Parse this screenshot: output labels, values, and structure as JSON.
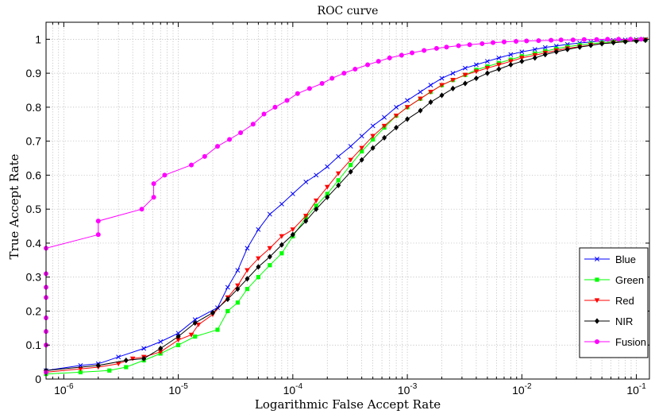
{
  "chart_data": {
    "type": "line",
    "title": "ROC curve",
    "xlabel": "Logarithmic False Accept Rate",
    "ylabel": "True Accept Rate",
    "xscale": "log",
    "xlim": [
      7e-07,
      0.13
    ],
    "ylim": [
      0,
      1.05
    ],
    "grid": true,
    "legend_position": "bottom-right",
    "x_ticks": [
      {
        "value": 1e-06,
        "base": "10",
        "exp": "-6"
      },
      {
        "value": 1e-05,
        "base": "10",
        "exp": "-5"
      },
      {
        "value": 0.0001,
        "base": "10",
        "exp": "-4"
      },
      {
        "value": 0.001,
        "base": "10",
        "exp": "-3"
      },
      {
        "value": 0.01,
        "base": "10",
        "exp": "-2"
      },
      {
        "value": 0.1,
        "base": "10",
        "exp": "-1"
      }
    ],
    "y_ticks": [
      {
        "value": 0,
        "label": "0"
      },
      {
        "value": 0.1,
        "label": "0.1"
      },
      {
        "value": 0.2,
        "label": "0.2"
      },
      {
        "value": 0.3,
        "label": "0.3"
      },
      {
        "value": 0.4,
        "label": "0.4"
      },
      {
        "value": 0.5,
        "label": "0.5"
      },
      {
        "value": 0.6,
        "label": "0.6"
      },
      {
        "value": 0.7,
        "label": "0.7"
      },
      {
        "value": 0.8,
        "label": "0.8"
      },
      {
        "value": 0.9,
        "label": "0.9"
      },
      {
        "value": 1,
        "label": "1"
      }
    ],
    "series": [
      {
        "name": "Blue",
        "color": "#0000ff",
        "marker": "x",
        "x": [
          7e-07,
          1.4e-06,
          2e-06,
          3e-06,
          5e-06,
          7e-06,
          1e-05,
          1.4e-05,
          2.2e-05,
          2.7e-05,
          3.3e-05,
          4e-05,
          5e-05,
          6.3e-05,
          8e-05,
          0.0001,
          0.00013,
          0.00016,
          0.0002,
          0.00025,
          0.00032,
          0.0004,
          0.0005,
          0.00063,
          0.0008,
          0.001,
          0.0013,
          0.0016,
          0.002,
          0.0025,
          0.0032,
          0.004,
          0.005,
          0.0063,
          0.008,
          0.01,
          0.013,
          0.016,
          0.02,
          0.025,
          0.032,
          0.04,
          0.05,
          0.063,
          0.08,
          0.1,
          0.12
        ],
        "y": [
          0.025,
          0.04,
          0.045,
          0.065,
          0.09,
          0.11,
          0.135,
          0.175,
          0.21,
          0.27,
          0.32,
          0.385,
          0.44,
          0.485,
          0.515,
          0.545,
          0.58,
          0.6,
          0.625,
          0.655,
          0.685,
          0.715,
          0.745,
          0.77,
          0.8,
          0.82,
          0.845,
          0.865,
          0.885,
          0.9,
          0.915,
          0.925,
          0.935,
          0.945,
          0.955,
          0.963,
          0.97,
          0.976,
          0.98,
          0.985,
          0.989,
          0.992,
          0.995,
          0.997,
          0.998,
          0.999,
          1.0
        ]
      },
      {
        "name": "Green",
        "color": "#00ff00",
        "marker": "square",
        "x": [
          7e-07,
          1.4e-06,
          2.5e-06,
          3.5e-06,
          5e-06,
          7e-06,
          1e-05,
          1.4e-05,
          2.2e-05,
          2.7e-05,
          3.3e-05,
          4e-05,
          5e-05,
          6.3e-05,
          8e-05,
          0.0001,
          0.00013,
          0.00016,
          0.0002,
          0.00025,
          0.00032,
          0.0004,
          0.0005,
          0.00063,
          0.0008,
          0.001,
          0.0013,
          0.0016,
          0.002,
          0.0025,
          0.0032,
          0.004,
          0.005,
          0.0063,
          0.008,
          0.01,
          0.013,
          0.016,
          0.02,
          0.025,
          0.032,
          0.04,
          0.05,
          0.063,
          0.08,
          0.1,
          0.12
        ],
        "y": [
          0.015,
          0.02,
          0.025,
          0.035,
          0.055,
          0.075,
          0.1,
          0.125,
          0.145,
          0.2,
          0.225,
          0.265,
          0.3,
          0.335,
          0.37,
          0.42,
          0.475,
          0.51,
          0.545,
          0.585,
          0.63,
          0.67,
          0.705,
          0.74,
          0.775,
          0.8,
          0.825,
          0.845,
          0.865,
          0.88,
          0.895,
          0.91,
          0.92,
          0.93,
          0.94,
          0.95,
          0.958,
          0.965,
          0.972,
          0.978,
          0.983,
          0.987,
          0.99,
          0.993,
          0.995,
          0.997,
          0.999
        ]
      },
      {
        "name": "Red",
        "color": "#ff0000",
        "marker": "triangle-down",
        "x": [
          7e-07,
          1.4e-06,
          2e-06,
          3e-06,
          4e-06,
          5e-06,
          7e-06,
          1e-05,
          1.3e-05,
          1.5e-05,
          2e-05,
          2.7e-05,
          3.3e-05,
          4e-05,
          5e-05,
          6.3e-05,
          8e-05,
          0.0001,
          0.00013,
          0.00016,
          0.0002,
          0.00025,
          0.00032,
          0.0004,
          0.0005,
          0.00063,
          0.0008,
          0.001,
          0.0013,
          0.0016,
          0.002,
          0.0025,
          0.0032,
          0.004,
          0.005,
          0.0063,
          0.008,
          0.01,
          0.013,
          0.016,
          0.02,
          0.025,
          0.032,
          0.04,
          0.05,
          0.063,
          0.08,
          0.1,
          0.12
        ],
        "y": [
          0.02,
          0.03,
          0.035,
          0.045,
          0.06,
          0.065,
          0.08,
          0.115,
          0.13,
          0.16,
          0.19,
          0.24,
          0.275,
          0.32,
          0.355,
          0.385,
          0.42,
          0.44,
          0.48,
          0.525,
          0.565,
          0.605,
          0.645,
          0.68,
          0.715,
          0.745,
          0.775,
          0.8,
          0.825,
          0.845,
          0.865,
          0.88,
          0.895,
          0.905,
          0.915,
          0.925,
          0.935,
          0.945,
          0.953,
          0.96,
          0.967,
          0.973,
          0.978,
          0.983,
          0.987,
          0.99,
          0.993,
          0.996,
          0.998
        ]
      },
      {
        "name": "NIR",
        "color": "#000000",
        "marker": "diamond",
        "x": [
          7e-07,
          2e-06,
          3.5e-06,
          5e-06,
          7e-06,
          1e-05,
          1.4e-05,
          2e-05,
          2.7e-05,
          3.3e-05,
          4e-05,
          5e-05,
          6.3e-05,
          8e-05,
          0.0001,
          0.00013,
          0.00016,
          0.0002,
          0.00025,
          0.00032,
          0.0004,
          0.0005,
          0.00063,
          0.0008,
          0.001,
          0.0013,
          0.0016,
          0.002,
          0.0025,
          0.0032,
          0.004,
          0.005,
          0.0063,
          0.008,
          0.01,
          0.013,
          0.016,
          0.02,
          0.025,
          0.032,
          0.04,
          0.05,
          0.063,
          0.08,
          0.1,
          0.12
        ],
        "y": [
          0.025,
          0.04,
          0.055,
          0.06,
          0.09,
          0.125,
          0.165,
          0.195,
          0.235,
          0.265,
          0.295,
          0.33,
          0.36,
          0.395,
          0.425,
          0.465,
          0.5,
          0.535,
          0.57,
          0.61,
          0.645,
          0.68,
          0.71,
          0.74,
          0.765,
          0.79,
          0.815,
          0.835,
          0.855,
          0.87,
          0.885,
          0.9,
          0.912,
          0.925,
          0.935,
          0.945,
          0.955,
          0.963,
          0.97,
          0.977,
          0.982,
          0.987,
          0.99,
          0.993,
          0.995,
          0.997
        ]
      },
      {
        "name": "Fusion",
        "color": "#ff00ff",
        "marker": "circle",
        "x": [
          7e-07,
          7e-07,
          7e-07,
          7e-07,
          7e-07,
          7e-07,
          7e-07,
          7e-07,
          2e-06,
          2e-06,
          4.8e-06,
          6.1e-06,
          6.1e-06,
          7.6e-06,
          1.3e-05,
          1.7e-05,
          2.2e-05,
          2.8e-05,
          3.5e-05,
          4.5e-05,
          5.6e-05,
          7e-05,
          8.9e-05,
          0.00011,
          0.00014,
          0.00018,
          0.00022,
          0.00028,
          0.00035,
          0.00045,
          0.00056,
          0.0007,
          0.00089,
          0.0011,
          0.0014,
          0.0018,
          0.0022,
          0.0028,
          0.0035,
          0.0045,
          0.0056,
          0.007,
          0.0089,
          0.011,
          0.014,
          0.018,
          0.022,
          0.028,
          0.035,
          0.045,
          0.056,
          0.07,
          0.089,
          0.11
        ],
        "y": [
          0.02,
          0.1,
          0.14,
          0.18,
          0.24,
          0.27,
          0.31,
          0.385,
          0.425,
          0.465,
          0.5,
          0.535,
          0.575,
          0.6,
          0.63,
          0.655,
          0.685,
          0.705,
          0.725,
          0.75,
          0.78,
          0.8,
          0.82,
          0.84,
          0.855,
          0.87,
          0.885,
          0.9,
          0.912,
          0.925,
          0.935,
          0.945,
          0.953,
          0.96,
          0.967,
          0.973,
          0.977,
          0.981,
          0.984,
          0.987,
          0.99,
          0.992,
          0.994,
          0.995,
          0.996,
          0.997,
          0.998,
          0.998,
          0.999,
          0.999,
          1.0,
          1.0,
          1.0,
          1.0
        ]
      }
    ]
  }
}
